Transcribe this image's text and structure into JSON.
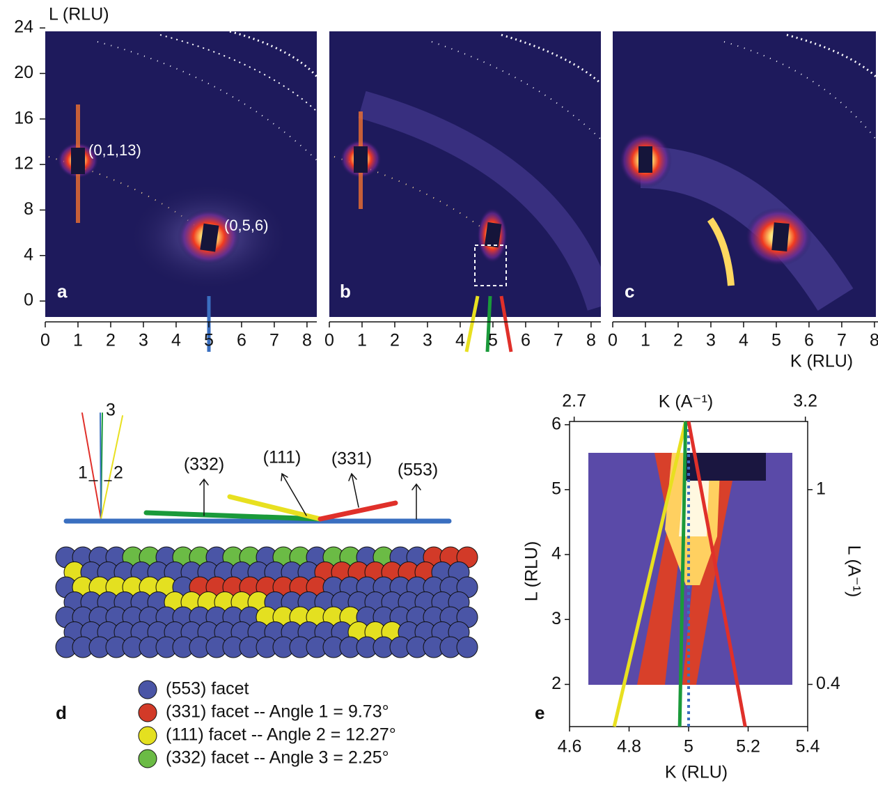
{
  "top": {
    "l_label": "L (RLU)",
    "k_label": "K (RLU)",
    "llim": [
      -1.4,
      23.7
    ],
    "lticks": [
      0,
      4,
      8,
      12,
      16,
      20,
      24
    ],
    "klim": [
      0,
      8.3
    ],
    "kticks": [
      0,
      1,
      2,
      3,
      4,
      5,
      6,
      7,
      8
    ],
    "panels": [
      {
        "letter": "a",
        "annotations": [
          "(0,1,13)",
          "(0,5,6)"
        ]
      },
      {
        "letter": "b"
      },
      {
        "letter": "c"
      }
    ]
  },
  "facets": {
    "letter": "d",
    "angle_labels": [
      "1",
      "2",
      "3"
    ],
    "facet_labels": [
      "(332)",
      "(111)",
      "(331)",
      "(553)"
    ],
    "legend": [
      {
        "text": "(553) facet",
        "color": "#4a55a6"
      },
      {
        "text": "(331) facet -- Angle 1 = 9.73°",
        "color": "#d23a28"
      },
      {
        "text": "(111) facet -- Angle 2 = 12.27°",
        "color": "#e4e020"
      },
      {
        "text": "(332) facet -- Angle 3 = 2.25°",
        "color": "#6bbb45"
      }
    ]
  },
  "zoom": {
    "letter": "e",
    "x_label": "K (RLU)",
    "y_label": "L (RLU)",
    "x2_label": "K (A⁻¹)",
    "y2_label": "L (A⁻¹)",
    "xlim": [
      4.6,
      5.4
    ],
    "xticks": [
      4.6,
      4.8,
      5,
      5.2,
      5.4
    ],
    "ylim": [
      1.35,
      6.05
    ],
    "yticks": [
      2,
      3,
      4,
      5,
      6
    ],
    "x2lim": [
      2.69,
      3.205
    ],
    "x2ticks": [
      2.7,
      3.2
    ],
    "y2lim": [
      0.27,
      1.21
    ],
    "y2ticks": [
      0.4,
      1
    ],
    "lines": [
      {
        "color": "#e8e020",
        "x": [
          4.75,
          4.99
        ],
        "y": [
          1.35,
          6.05
        ]
      },
      {
        "color": "#1a9a3a",
        "x": [
          4.97,
          4.99
        ],
        "y": [
          1.35,
          6.05
        ]
      },
      {
        "color": "#3a6fc0",
        "dashed": true,
        "x": [
          5,
          5
        ],
        "y": [
          1.35,
          6.05
        ]
      },
      {
        "color": "#e0302a",
        "x": [
          5,
          5.19
        ],
        "y": [
          6.05,
          1.35
        ]
      }
    ]
  }
}
